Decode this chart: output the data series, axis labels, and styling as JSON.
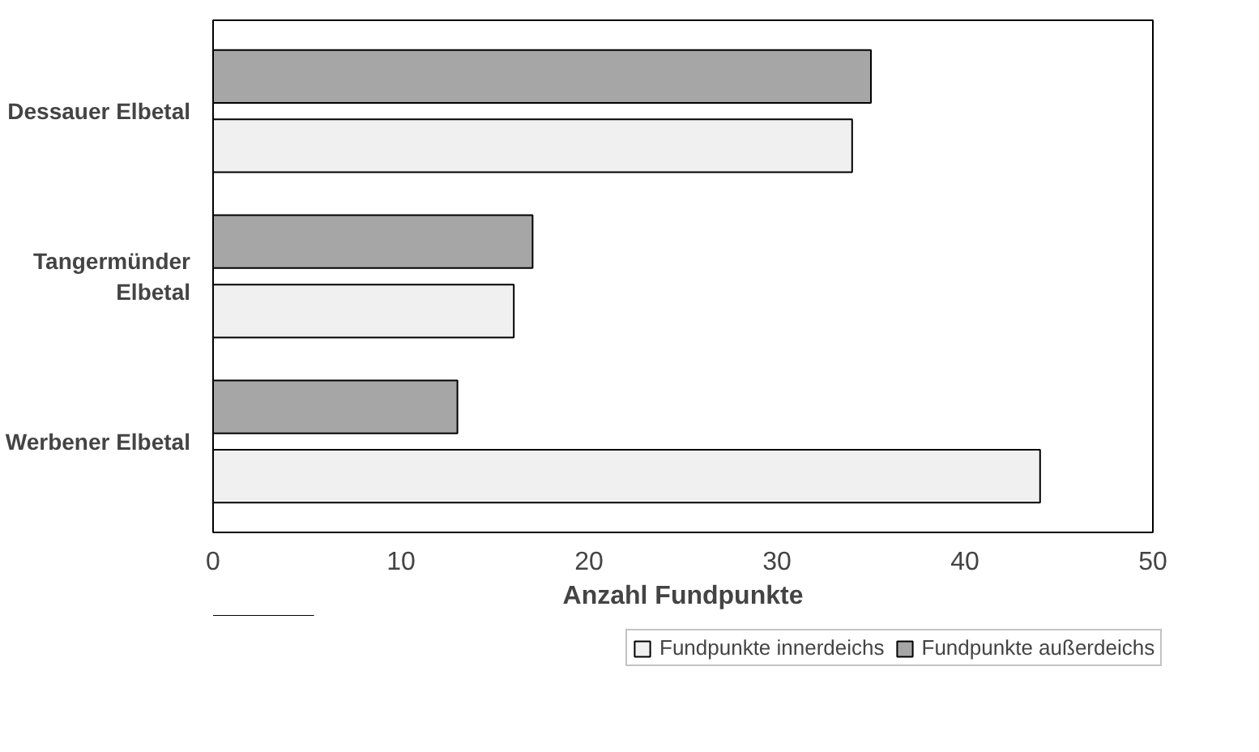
{
  "chart_data": {
    "type": "bar",
    "orientation": "horizontal",
    "xlabel": "Anzahl Fundpunkte",
    "categories": [
      "Dessauer Elbetal",
      "Tangermünder\nElbetal",
      "Werbener Elbetal"
    ],
    "series": [
      {
        "name": "Fundpunkte innerdeichs",
        "color": "#f0f0f0",
        "values": [
          34,
          16,
          44
        ]
      },
      {
        "name": "Fundpunkte außerdeichs",
        "color": "#a6a6a6",
        "values": [
          35,
          17,
          13
        ]
      }
    ],
    "xlim": [
      0,
      50
    ],
    "xticks": [
      0,
      10,
      20,
      30,
      40,
      50
    ],
    "grid": false,
    "legend": "bottom"
  }
}
